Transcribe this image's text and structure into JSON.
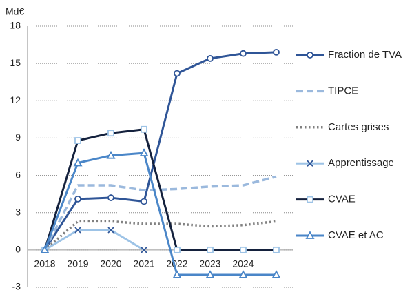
{
  "chart_data": {
    "type": "line",
    "y_label": "Md€",
    "categories": [
      "2018",
      "2019",
      "2020",
      "2021",
      "2022",
      "2023",
      "2024",
      null
    ],
    "ylim": [
      -3,
      18
    ],
    "yticks": [
      -3,
      0,
      3,
      6,
      9,
      12,
      15,
      18
    ],
    "grid": true,
    "legend": "right",
    "series": [
      {
        "name": "Fraction de TVA",
        "color": "#2f5597",
        "dash": "solid",
        "marker": "circle",
        "marker_color": "#2f5597",
        "values": [
          0,
          4.1,
          4.2,
          3.9,
          14.2,
          15.4,
          15.8,
          15.9
        ]
      },
      {
        "name": "TIPCE",
        "color": "#9bb9dd",
        "dash": "dashed",
        "marker": "none",
        "marker_color": "#9bb9dd",
        "values": [
          0,
          5.2,
          5.2,
          4.8,
          4.9,
          5.1,
          5.2,
          5.9
        ]
      },
      {
        "name": "Cartes grises",
        "color": "#808080",
        "dash": "dotted",
        "marker": "none",
        "marker_color": "#808080",
        "values": [
          0,
          2.3,
          2.3,
          2.1,
          2.1,
          1.9,
          2.0,
          2.3
        ]
      },
      {
        "name": "Apprentissage",
        "color": "#9dc3e6",
        "dash": "solid",
        "marker": "x",
        "marker_color": "#2f5597",
        "values": [
          0,
          1.6,
          1.6,
          0,
          null,
          null,
          null,
          null
        ]
      },
      {
        "name": "CVAE",
        "color": "#14213d",
        "dash": "solid",
        "marker": "square",
        "marker_color": "#9dc3e6",
        "values": [
          0,
          8.8,
          9.4,
          9.7,
          0,
          0,
          0,
          0
        ]
      },
      {
        "name": "CVAE et AC",
        "color": "#4a86c8",
        "dash": "solid",
        "marker": "triangle",
        "marker_color": "#4a86c8",
        "values": [
          0,
          7.0,
          7.6,
          7.8,
          -2,
          -2,
          -2,
          -2
        ]
      }
    ]
  }
}
